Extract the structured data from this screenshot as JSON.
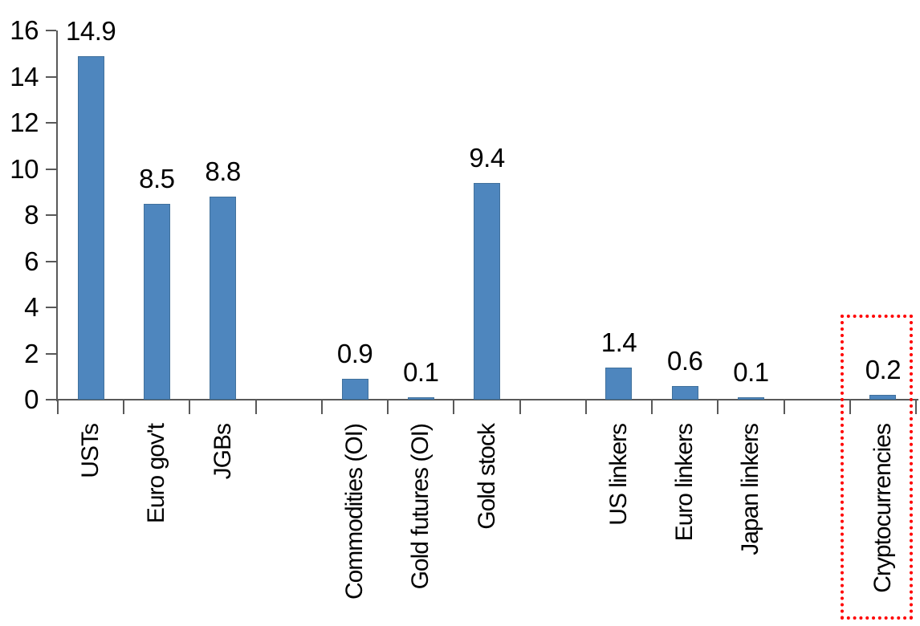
{
  "chart_data": {
    "type": "bar",
    "title": "",
    "xlabel": "",
    "ylabel": "",
    "categories": [
      "USTs",
      "Euro gov't",
      "JGBs",
      "",
      "Commodities (OI)",
      "Gold futures (OI)",
      "Gold stock",
      "",
      "US linkers",
      "Euro linkers",
      "Japan linkers",
      "",
      "Cryptocurrencies"
    ],
    "values": [
      14.9,
      8.5,
      8.8,
      null,
      0.9,
      0.1,
      9.4,
      null,
      1.4,
      0.6,
      0.1,
      null,
      0.2
    ],
    "bar_labels": [
      "14.9",
      "8.5",
      "8.8",
      "",
      "0.9",
      "0.1",
      "9.4",
      "",
      "1.4",
      "0.6",
      "0.1",
      "",
      "0.2"
    ],
    "yticks": [
      0,
      2,
      4,
      6,
      8,
      10,
      12,
      14,
      16
    ],
    "ylim": [
      0,
      16
    ],
    "grid": false,
    "legend": "none",
    "bar_color": "#4E86BE",
    "bar_border_color": "#41719C",
    "axis_color": "#595959",
    "text_color": "#000000",
    "highlight": {
      "category_index": 12,
      "category": "Cryptocurrencies",
      "box_color": "#FF0000",
      "box_style": "dotted"
    }
  }
}
